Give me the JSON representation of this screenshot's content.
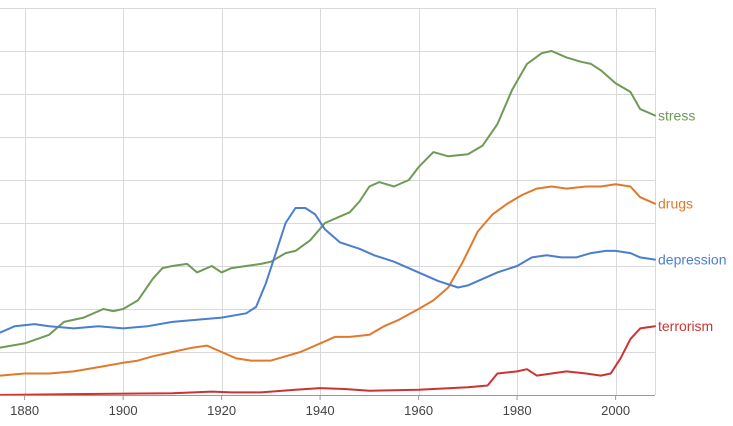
{
  "chart_data": {
    "type": "line",
    "title": "",
    "xlabel": "",
    "ylabel": "",
    "xlim": [
      1875,
      2008
    ],
    "ylim": [
      0,
      9
    ],
    "grid": true,
    "legend": "end-of-line labels",
    "x_ticks": [
      "1880",
      "1900",
      "1920",
      "1940",
      "1960",
      "1980",
      "2000"
    ],
    "series": [
      {
        "name": "stress",
        "color": "#6f9a55",
        "points": [
          [
            1875,
            1.1
          ],
          [
            1880,
            1.2
          ],
          [
            1885,
            1.4
          ],
          [
            1888,
            1.7
          ],
          [
            1892,
            1.8
          ],
          [
            1896,
            2.0
          ],
          [
            1898,
            1.95
          ],
          [
            1900,
            2.0
          ],
          [
            1903,
            2.2
          ],
          [
            1906,
            2.7
          ],
          [
            1908,
            2.95
          ],
          [
            1910,
            3.0
          ],
          [
            1913,
            3.05
          ],
          [
            1915,
            2.85
          ],
          [
            1918,
            3.0
          ],
          [
            1920,
            2.85
          ],
          [
            1922,
            2.95
          ],
          [
            1925,
            3.0
          ],
          [
            1928,
            3.05
          ],
          [
            1930,
            3.1
          ],
          [
            1933,
            3.3
          ],
          [
            1935,
            3.35
          ],
          [
            1938,
            3.6
          ],
          [
            1941,
            4.0
          ],
          [
            1943,
            4.1
          ],
          [
            1946,
            4.25
          ],
          [
            1948,
            4.5
          ],
          [
            1950,
            4.85
          ],
          [
            1952,
            4.95
          ],
          [
            1955,
            4.85
          ],
          [
            1958,
            5.0
          ],
          [
            1960,
            5.3
          ],
          [
            1963,
            5.65
          ],
          [
            1966,
            5.55
          ],
          [
            1970,
            5.6
          ],
          [
            1973,
            5.8
          ],
          [
            1976,
            6.3
          ],
          [
            1979,
            7.1
          ],
          [
            1982,
            7.7
          ],
          [
            1985,
            7.95
          ],
          [
            1987,
            8.0
          ],
          [
            1990,
            7.85
          ],
          [
            1993,
            7.75
          ],
          [
            1995,
            7.7
          ],
          [
            1997,
            7.55
          ],
          [
            2000,
            7.25
          ],
          [
            2003,
            7.05
          ],
          [
            2005,
            6.65
          ],
          [
            2008,
            6.5
          ]
        ]
      },
      {
        "name": "drugs",
        "color": "#e2792a",
        "points": [
          [
            1875,
            0.45
          ],
          [
            1880,
            0.5
          ],
          [
            1885,
            0.5
          ],
          [
            1890,
            0.55
          ],
          [
            1895,
            0.65
          ],
          [
            1900,
            0.75
          ],
          [
            1903,
            0.8
          ],
          [
            1906,
            0.9
          ],
          [
            1910,
            1.0
          ],
          [
            1914,
            1.1
          ],
          [
            1917,
            1.15
          ],
          [
            1920,
            1.0
          ],
          [
            1923,
            0.85
          ],
          [
            1926,
            0.8
          ],
          [
            1930,
            0.8
          ],
          [
            1933,
            0.9
          ],
          [
            1936,
            1.0
          ],
          [
            1940,
            1.2
          ],
          [
            1943,
            1.35
          ],
          [
            1946,
            1.35
          ],
          [
            1950,
            1.4
          ],
          [
            1953,
            1.6
          ],
          [
            1956,
            1.75
          ],
          [
            1960,
            2.0
          ],
          [
            1963,
            2.2
          ],
          [
            1966,
            2.5
          ],
          [
            1969,
            3.1
          ],
          [
            1972,
            3.8
          ],
          [
            1975,
            4.2
          ],
          [
            1978,
            4.45
          ],
          [
            1981,
            4.65
          ],
          [
            1984,
            4.8
          ],
          [
            1987,
            4.85
          ],
          [
            1990,
            4.8
          ],
          [
            1994,
            4.85
          ],
          [
            1997,
            4.85
          ],
          [
            2000,
            4.9
          ],
          [
            2003,
            4.85
          ],
          [
            2005,
            4.6
          ],
          [
            2008,
            4.45
          ]
        ]
      },
      {
        "name": "depression",
        "color": "#4a7ecf",
        "points": [
          [
            1875,
            1.45
          ],
          [
            1878,
            1.6
          ],
          [
            1882,
            1.65
          ],
          [
            1885,
            1.6
          ],
          [
            1890,
            1.55
          ],
          [
            1895,
            1.6
          ],
          [
            1900,
            1.55
          ],
          [
            1905,
            1.6
          ],
          [
            1910,
            1.7
          ],
          [
            1915,
            1.75
          ],
          [
            1920,
            1.8
          ],
          [
            1925,
            1.9
          ],
          [
            1927,
            2.05
          ],
          [
            1929,
            2.6
          ],
          [
            1931,
            3.3
          ],
          [
            1933,
            4.0
          ],
          [
            1935,
            4.35
          ],
          [
            1937,
            4.35
          ],
          [
            1939,
            4.2
          ],
          [
            1941,
            3.85
          ],
          [
            1944,
            3.55
          ],
          [
            1948,
            3.4
          ],
          [
            1951,
            3.25
          ],
          [
            1955,
            3.1
          ],
          [
            1960,
            2.85
          ],
          [
            1964,
            2.65
          ],
          [
            1968,
            2.5
          ],
          [
            1970,
            2.55
          ],
          [
            1973,
            2.7
          ],
          [
            1976,
            2.85
          ],
          [
            1980,
            3.0
          ],
          [
            1983,
            3.2
          ],
          [
            1986,
            3.25
          ],
          [
            1989,
            3.2
          ],
          [
            1992,
            3.2
          ],
          [
            1995,
            3.3
          ],
          [
            1998,
            3.35
          ],
          [
            2000,
            3.35
          ],
          [
            2003,
            3.3
          ],
          [
            2005,
            3.2
          ],
          [
            2008,
            3.15
          ]
        ]
      },
      {
        "name": "terrorism",
        "color": "#cc3333",
        "points": [
          [
            1875,
            0.0
          ],
          [
            1890,
            0.02
          ],
          [
            1910,
            0.04
          ],
          [
            1918,
            0.08
          ],
          [
            1922,
            0.06
          ],
          [
            1928,
            0.06
          ],
          [
            1935,
            0.12
          ],
          [
            1940,
            0.16
          ],
          [
            1945,
            0.14
          ],
          [
            1950,
            0.1
          ],
          [
            1960,
            0.12
          ],
          [
            1970,
            0.18
          ],
          [
            1974,
            0.22
          ],
          [
            1976,
            0.5
          ],
          [
            1980,
            0.55
          ],
          [
            1982,
            0.6
          ],
          [
            1984,
            0.45
          ],
          [
            1987,
            0.5
          ],
          [
            1990,
            0.55
          ],
          [
            1994,
            0.5
          ],
          [
            1997,
            0.45
          ],
          [
            1999,
            0.5
          ],
          [
            2001,
            0.85
          ],
          [
            2003,
            1.3
          ],
          [
            2005,
            1.55
          ],
          [
            2008,
            1.6
          ]
        ]
      }
    ]
  }
}
